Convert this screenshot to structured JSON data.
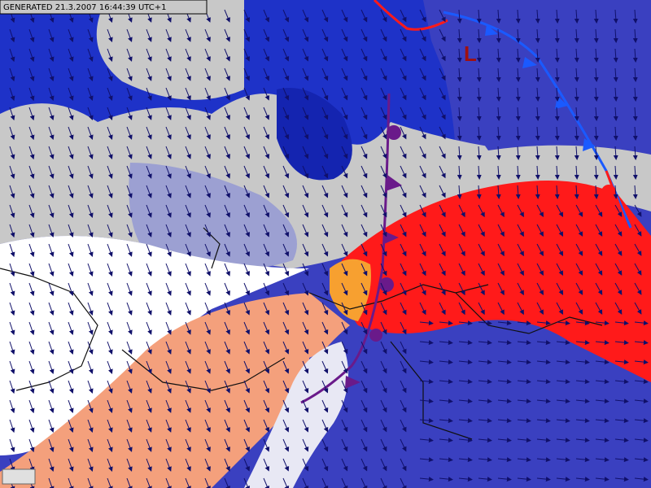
{
  "header": {
    "generated": "GENERATED 21.3.2007 16:44:39 UTC+1"
  },
  "map": {
    "low_label": "L"
  }
}
